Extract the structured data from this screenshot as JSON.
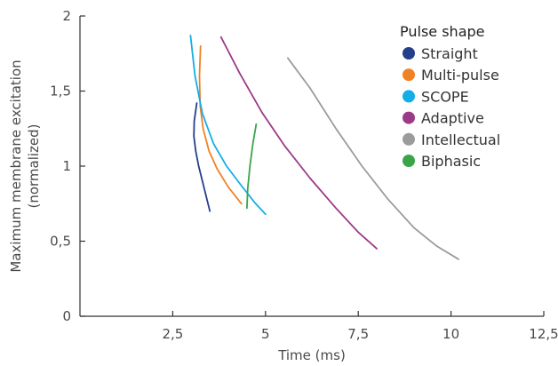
{
  "chart_data": {
    "type": "line",
    "xlabel": "Time (ms)",
    "ylabel_lines": [
      "Maximum membrane excitation",
      "(normalized)"
    ],
    "xlim": [
      0,
      12.5
    ],
    "ylim": [
      0,
      2
    ],
    "x_ticks": [
      2.5,
      5,
      7.5,
      10,
      12.5
    ],
    "x_tick_labels": [
      "2,5",
      "5",
      "7,5",
      "10",
      "12,5"
    ],
    "y_ticks": [
      0,
      0.5,
      1,
      1.5,
      2
    ],
    "y_tick_labels": [
      "0",
      "0,5",
      "1",
      "1,5",
      "2"
    ],
    "legend": {
      "title": "Pulse shape",
      "position": "top-right"
    },
    "series": [
      {
        "name": "Straight",
        "color": "#233f8c",
        "x": [
          3.15,
          3.08,
          3.07,
          3.12,
          3.2,
          3.3,
          3.4,
          3.5
        ],
        "y": [
          1.42,
          1.3,
          1.2,
          1.1,
          1.0,
          0.9,
          0.8,
          0.7
        ]
      },
      {
        "name": "Multi-pulse",
        "color": "#f08226",
        "x": [
          3.25,
          3.22,
          3.24,
          3.32,
          3.48,
          3.7,
          4.0,
          4.35
        ],
        "y": [
          1.8,
          1.6,
          1.4,
          1.25,
          1.1,
          0.98,
          0.86,
          0.75
        ]
      },
      {
        "name": "SCOPE",
        "color": "#13aee7",
        "x": [
          2.98,
          3.1,
          3.3,
          3.6,
          3.95,
          4.35,
          4.7,
          5.0
        ],
        "y": [
          1.87,
          1.6,
          1.35,
          1.15,
          1.0,
          0.87,
          0.76,
          0.68
        ]
      },
      {
        "name": "Adaptive",
        "color": "#9c3a87",
        "x": [
          3.8,
          4.3,
          4.9,
          5.5,
          6.2,
          6.9,
          7.5,
          8.0
        ],
        "y": [
          1.86,
          1.62,
          1.36,
          1.14,
          0.92,
          0.72,
          0.56,
          0.45
        ]
      },
      {
        "name": "Intellectual",
        "color": "#9b9b9b",
        "x": [
          5.6,
          6.2,
          6.9,
          7.6,
          8.3,
          9.0,
          9.6,
          10.2
        ],
        "y": [
          1.72,
          1.52,
          1.25,
          1.0,
          0.78,
          0.59,
          0.47,
          0.38
        ]
      },
      {
        "name": "Biphasic",
        "color": "#3aa548",
        "x": [
          4.5,
          4.52,
          4.58,
          4.66,
          4.75
        ],
        "y": [
          0.72,
          0.85,
          1.0,
          1.15,
          1.28
        ]
      }
    ]
  }
}
